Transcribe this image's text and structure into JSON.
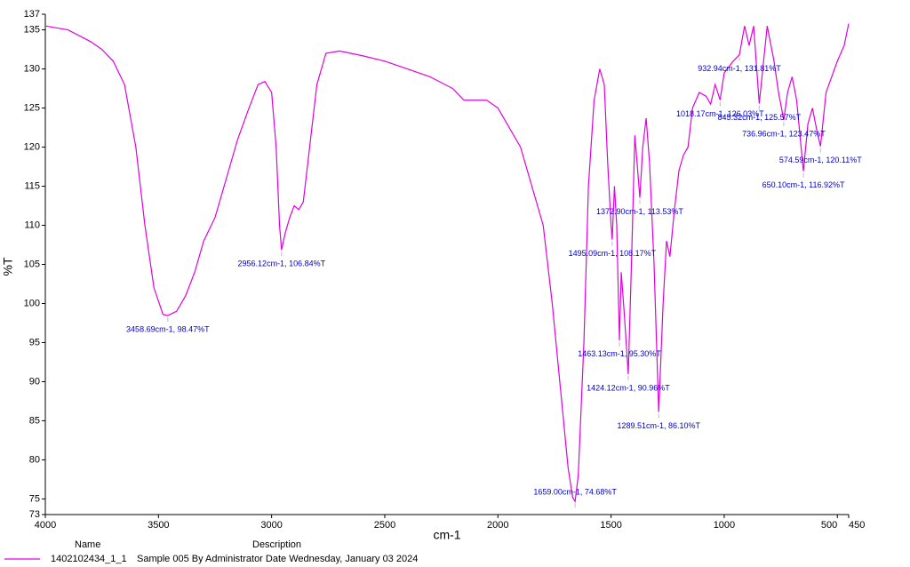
{
  "chart_data": {
    "type": "line",
    "x_label": "cm-1",
    "y_label": "%T",
    "xlim": [
      4000,
      450
    ],
    "ylim": [
      73,
      137
    ],
    "xticks": [
      4000,
      3500,
      3000,
      2500,
      2000,
      1500,
      1000,
      500,
      450
    ],
    "yticks": [
      73,
      75,
      80,
      85,
      90,
      95,
      100,
      105,
      110,
      115,
      120,
      125,
      130,
      135,
      137
    ],
    "legend_headers": [
      "Name",
      "Description"
    ],
    "series": [
      {
        "name": "1402102434_1_1",
        "description": "Sample 005 By Administrator Date Wednesday, January 03 2024",
        "color": "#e100e1",
        "x": [
          4000,
          3900,
          3800,
          3750,
          3700,
          3650,
          3600,
          3560,
          3520,
          3480,
          3458.69,
          3420,
          3380,
          3340,
          3300,
          3250,
          3200,
          3150,
          3100,
          3060,
          3030,
          3000,
          2980,
          2965,
          2956.12,
          2940,
          2920,
          2900,
          2880,
          2860,
          2840,
          2800,
          2760,
          2700,
          2600,
          2500,
          2400,
          2300,
          2200,
          2150,
          2050,
          2000,
          1900,
          1800,
          1760,
          1720,
          1690,
          1670,
          1659,
          1645,
          1620,
          1600,
          1575,
          1550,
          1530,
          1515,
          1500,
          1495.09,
          1485,
          1475,
          1463.13,
          1455,
          1440,
          1424.12,
          1410,
          1395,
          1385,
          1372.9,
          1360,
          1345,
          1330,
          1310,
          1289.51,
          1270,
          1255,
          1240,
          1220,
          1200,
          1180,
          1160,
          1140,
          1110,
          1080,
          1060,
          1040,
          1018.17,
          1000,
          960,
          932.94,
          910,
          890,
          870,
          845.32,
          810,
          780,
          760,
          736.96,
          720,
          700,
          680,
          650.1,
          630,
          610,
          590,
          574.59,
          550,
          500,
          470,
          450
        ],
        "values": [
          135.5,
          135,
          133.5,
          132.5,
          131,
          128,
          120,
          110,
          102,
          98.6,
          98.47,
          99,
          101,
          104,
          108,
          111,
          116,
          121,
          125,
          128,
          128.4,
          127,
          120,
          110,
          106.84,
          109,
          111,
          112.5,
          112,
          113,
          118,
          128,
          132,
          132.3,
          131.7,
          131,
          130,
          129,
          127.5,
          126,
          126,
          125,
          120,
          110,
          100,
          88,
          79,
          75.2,
          74.68,
          78,
          95,
          115,
          126,
          130,
          128,
          118,
          110,
          108.17,
          115,
          110,
          95.3,
          104,
          98,
          90.96,
          105,
          121.5,
          118,
          113.53,
          120,
          123.7,
          118,
          105,
          86.1,
          100,
          108,
          106,
          112,
          117,
          119,
          120,
          125,
          127,
          126.5,
          125.5,
          128,
          126.03,
          129.5,
          131,
          131.81,
          135.5,
          133,
          135.5,
          125.57,
          135.5,
          131,
          127,
          123.47,
          127,
          129,
          126,
          116.92,
          123,
          125,
          122,
          120.11,
          127,
          131,
          133,
          135.8
        ]
      }
    ],
    "annotations": [
      {
        "x": 3458.69,
        "y": 98.47,
        "label": "3458.69cm-1, 98.47%T"
      },
      {
        "x": 2956.12,
        "y": 106.84,
        "label": "2956.12cm-1, 106.84%T"
      },
      {
        "x": 1659.0,
        "y": 74.68,
        "label": "1659.00cm-1, 74.68%T"
      },
      {
        "x": 1495.09,
        "y": 108.17,
        "label": "1495.09cm-1, 108.17%T"
      },
      {
        "x": 1463.13,
        "y": 95.3,
        "label": "1463.13cm-1, 95.30%T"
      },
      {
        "x": 1424.12,
        "y": 90.96,
        "label": "1424.12cm-1, 90.96%T"
      },
      {
        "x": 1372.9,
        "y": 113.53,
        "label": "1372.90cm-1, 113.53%T"
      },
      {
        "x": 1289.51,
        "y": 86.1,
        "label": "1289.51cm-1, 86.10%T"
      },
      {
        "x": 1018.17,
        "y": 126.03,
        "label": "1018.17cm-1, 126.03%T"
      },
      {
        "x": 932.94,
        "y": 131.81,
        "label": "932.94cm-1, 131.81%T"
      },
      {
        "x": 845.32,
        "y": 125.57,
        "label": "845.32cm-1, 125.57%T"
      },
      {
        "x": 736.96,
        "y": 123.47,
        "label": "736.96cm-1, 123.47%T"
      },
      {
        "x": 650.1,
        "y": 116.92,
        "label": "650.10cm-1, 116.92%T"
      },
      {
        "x": 574.59,
        "y": 120.11,
        "label": "574.59cm-1, 120.11%T"
      }
    ]
  }
}
